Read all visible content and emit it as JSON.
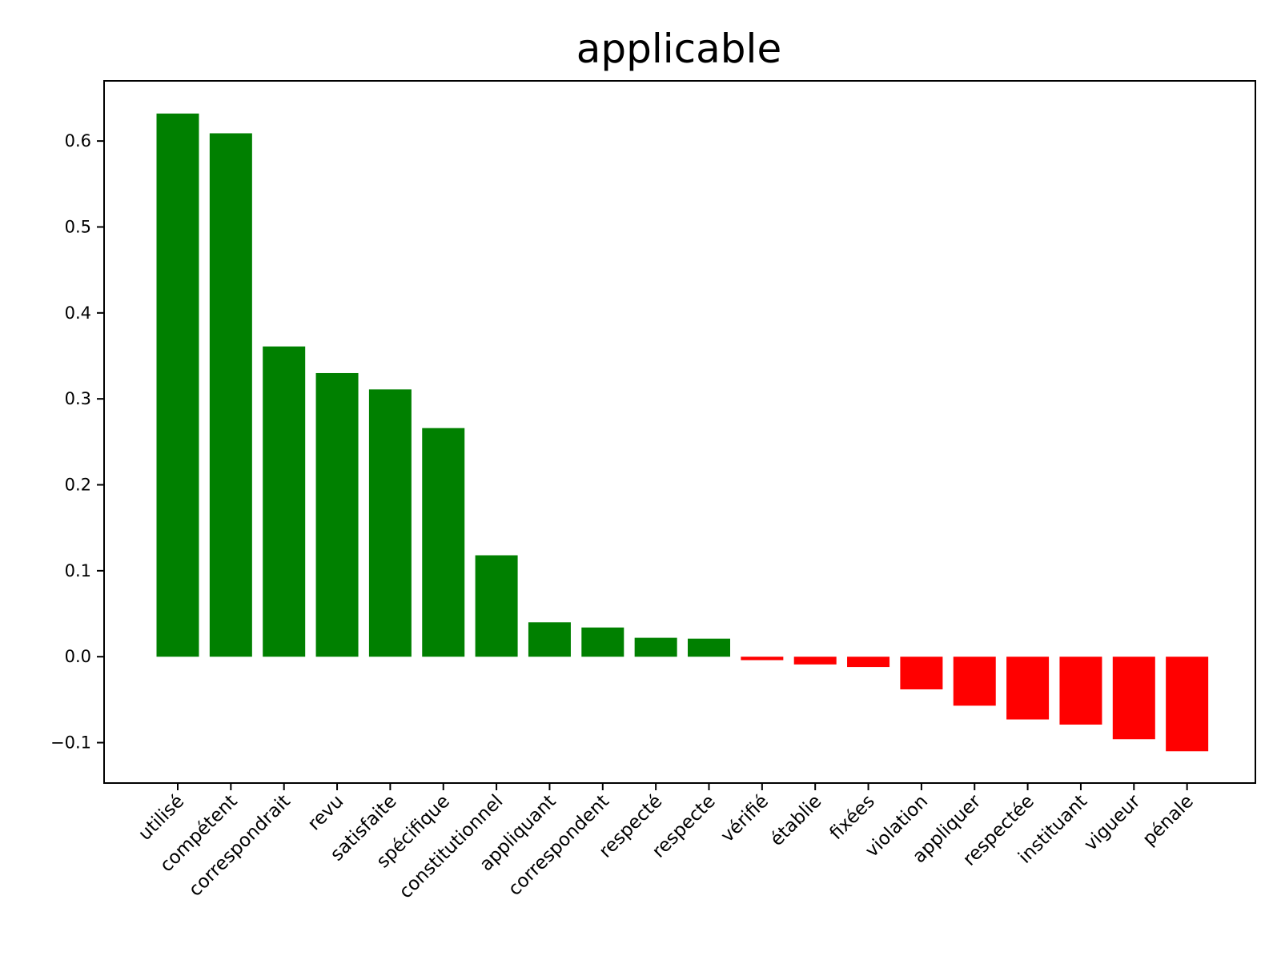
{
  "chart_data": {
    "type": "bar",
    "title": "applicable",
    "xlabel": "",
    "ylabel": "",
    "categories": [
      "utilisé",
      "compétent",
      "correspondrait",
      "revu",
      "satisfaite",
      "spécifique",
      "constitutionnel",
      "appliquant",
      "correspondent",
      "respecté",
      "respecte",
      "vérifié",
      "établie",
      "fixées",
      "violation",
      "appliquer",
      "respectée",
      "instituant",
      "vigueur",
      "pénale"
    ],
    "values": [
      0.632,
      0.609,
      0.361,
      0.33,
      0.311,
      0.266,
      0.118,
      0.04,
      0.034,
      0.022,
      0.021,
      -0.004,
      -0.009,
      -0.012,
      -0.038,
      -0.057,
      -0.073,
      -0.079,
      -0.096,
      -0.11
    ],
    "ylim": [
      -0.147,
      0.67
    ],
    "yticks": [
      -0.1,
      0.0,
      0.1,
      0.2,
      0.3,
      0.4,
      0.5,
      0.6
    ],
    "ytick_labels": [
      "−0.1",
      "0.0",
      "0.1",
      "0.2",
      "0.3",
      "0.4",
      "0.5",
      "0.6"
    ],
    "colors": {
      "positive": "#008000",
      "negative": "#ff0000"
    },
    "grid": false,
    "legend": "none"
  }
}
